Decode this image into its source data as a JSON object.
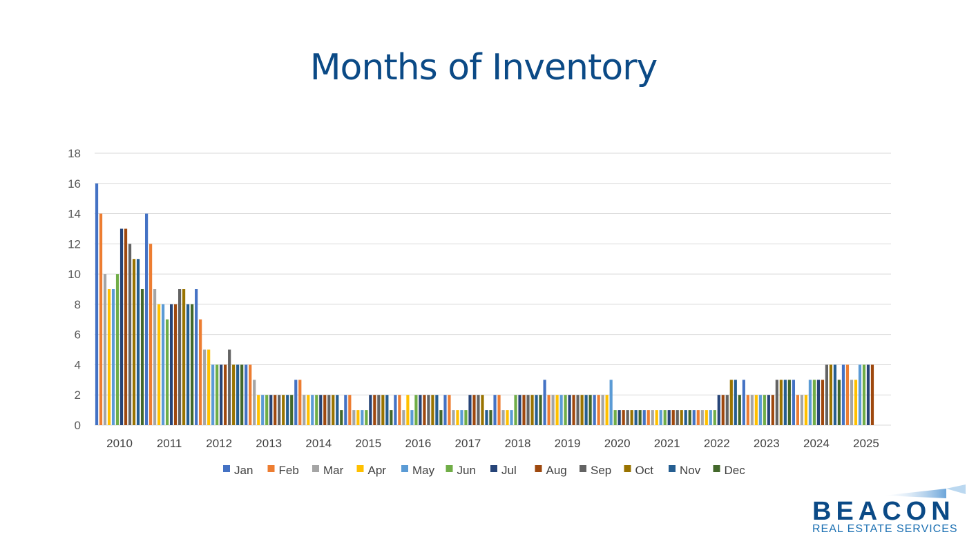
{
  "slide": {
    "title": "Months of Inventory"
  },
  "logo": {
    "name": "BEACON",
    "tagline": "REAL ESTATE SERVICES"
  },
  "colors": {
    "title": "#0b4a86",
    "gridline": "#d9d9d9",
    "axis_text": "#595959"
  },
  "chart_data": {
    "type": "bar",
    "title": "",
    "xlabel": "",
    "ylabel": "",
    "ylim": [
      0,
      18
    ],
    "yticks": [
      0,
      2,
      4,
      6,
      8,
      10,
      12,
      14,
      16,
      18
    ],
    "grid": true,
    "legend_position": "bottom",
    "categories": [
      "2010",
      "2011",
      "2012",
      "2013",
      "2014",
      "2015",
      "2016",
      "2017",
      "2018",
      "2019",
      "2020",
      "2021",
      "2022",
      "2023",
      "2024",
      "2025"
    ],
    "series": [
      {
        "name": "Jan",
        "color": "#4472c4",
        "values": [
          16,
          14,
          9,
          4,
          3,
          2,
          2,
          2,
          2,
          3,
          2,
          1,
          1,
          3,
          3,
          4
        ]
      },
      {
        "name": "Feb",
        "color": "#ed7d31",
        "values": [
          14,
          12,
          7,
          4,
          3,
          2,
          2,
          2,
          2,
          2,
          2,
          1,
          1,
          2,
          2,
          4
        ]
      },
      {
        "name": "Mar",
        "color": "#a5a5a5",
        "values": [
          10,
          9,
          5,
          3,
          2,
          1,
          1,
          1,
          1,
          2,
          2,
          1,
          1,
          2,
          2,
          3
        ]
      },
      {
        "name": "Apr",
        "color": "#ffc000",
        "values": [
          9,
          8,
          5,
          2,
          2,
          1,
          2,
          1,
          1,
          2,
          2,
          1,
          1,
          2,
          2,
          3
        ]
      },
      {
        "name": "May",
        "color": "#5b9bd5",
        "values": [
          9,
          8,
          4,
          2,
          2,
          1,
          1,
          1,
          1,
          2,
          3,
          1,
          1,
          2,
          3,
          4
        ]
      },
      {
        "name": "Jun",
        "color": "#70ad47",
        "values": [
          10,
          7,
          4,
          2,
          2,
          1,
          2,
          1,
          2,
          2,
          1,
          1,
          1,
          2,
          3,
          4
        ]
      },
      {
        "name": "Jul",
        "color": "#264478",
        "values": [
          13,
          8,
          4,
          2,
          2,
          2,
          2,
          2,
          2,
          2,
          1,
          1,
          2,
          2,
          3,
          4
        ]
      },
      {
        "name": "Aug",
        "color": "#9e480e",
        "values": [
          13,
          8,
          4,
          2,
          2,
          2,
          2,
          2,
          2,
          2,
          1,
          1,
          2,
          2,
          3,
          4
        ]
      },
      {
        "name": "Sep",
        "color": "#636363",
        "values": [
          12,
          9,
          5,
          2,
          2,
          2,
          2,
          2,
          2,
          2,
          1,
          1,
          2,
          3,
          4,
          null
        ]
      },
      {
        "name": "Oct",
        "color": "#997300",
        "values": [
          11,
          9,
          4,
          2,
          2,
          2,
          2,
          2,
          2,
          2,
          1,
          1,
          3,
          3,
          4,
          null
        ]
      },
      {
        "name": "Nov",
        "color": "#255e91",
        "values": [
          11,
          8,
          4,
          2,
          2,
          2,
          2,
          1,
          2,
          2,
          1,
          1,
          3,
          3,
          4,
          null
        ]
      },
      {
        "name": "Dec",
        "color": "#43682b",
        "values": [
          9,
          8,
          4,
          2,
          1,
          1,
          1,
          1,
          2,
          2,
          1,
          1,
          2,
          3,
          3,
          null
        ]
      }
    ]
  }
}
